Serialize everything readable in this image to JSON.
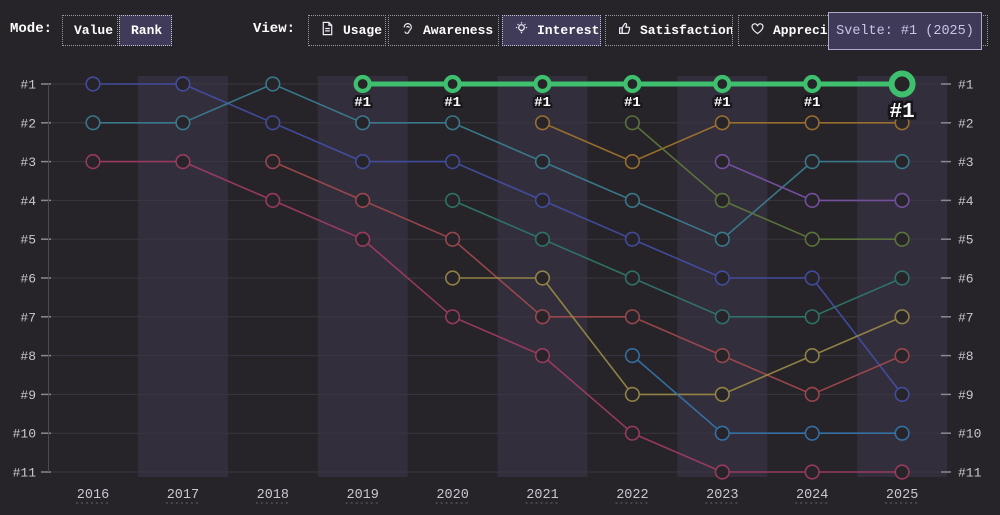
{
  "toolbar": {
    "mode": {
      "label": "Mode:",
      "options": [
        {
          "label": "Value",
          "selected": false
        },
        {
          "label": "Rank",
          "selected": true
        }
      ]
    },
    "view": {
      "label": "View:",
      "options": [
        {
          "label": "Usage",
          "icon": "document-icon",
          "selected": false
        },
        {
          "label": "Awareness",
          "icon": "ear-icon",
          "selected": false
        },
        {
          "label": "Interest",
          "icon": "lightbulb-icon",
          "selected": true
        },
        {
          "label": "Satisfaction",
          "icon": "thumbs-up-icon",
          "selected": false
        },
        {
          "label": "Appreciation",
          "icon": "heart-icon",
          "selected": false
        }
      ]
    }
  },
  "tooltip": {
    "text": "Svelte: #1 (2025)"
  },
  "chart_data": {
    "type": "line",
    "variant": "bump-rank-chart",
    "x_labels": [
      "2016",
      "2017",
      "2018",
      "2019",
      "2020",
      "2021",
      "2022",
      "2023",
      "2024",
      "2025"
    ],
    "y_tick_labels": [
      "#1",
      "#2",
      "#3",
      "#4",
      "#5",
      "#6",
      "#7",
      "#8",
      "#9",
      "#10",
      "#11"
    ],
    "y_axis_sides": [
      "left",
      "right"
    ],
    "grid": true,
    "striped_columns": [
      "2017",
      "2019",
      "2021",
      "2023",
      "2025"
    ],
    "highlight": {
      "series": "Svelte",
      "point_label": "#1",
      "tooltip_text": "Svelte: #1 (2025)",
      "color": "#3ec06f"
    },
    "series": [
      {
        "name": "series-royal-blue",
        "color": "#4450a8",
        "highlighted": false,
        "ranks": [
          1,
          1,
          2,
          3,
          3,
          4,
          5,
          6,
          6,
          9
        ]
      },
      {
        "name": "series-teal",
        "color": "#3a8194",
        "highlighted": false,
        "ranks": [
          2,
          2,
          1,
          2,
          2,
          3,
          4,
          5,
          3,
          3
        ]
      },
      {
        "name": "series-crimson",
        "color": "#a23d62",
        "highlighted": false,
        "ranks": [
          3,
          3,
          4,
          5,
          7,
          8,
          10,
          11,
          11,
          11
        ]
      },
      {
        "name": "series-red",
        "color": "#a34a4e",
        "highlighted": false,
        "ranks": [
          null,
          null,
          3,
          4,
          5,
          7,
          7,
          8,
          9,
          8
        ]
      },
      {
        "name": "series-dark-teal",
        "color": "#2f7a6e",
        "highlighted": false,
        "ranks": [
          null,
          null,
          null,
          null,
          4,
          5,
          6,
          7,
          7,
          6
        ]
      },
      {
        "name": "series-olive",
        "color": "#9b8c47",
        "highlighted": false,
        "ranks": [
          null,
          null,
          null,
          null,
          6,
          6,
          9,
          9,
          8,
          7
        ]
      },
      {
        "name": "series-orange",
        "color": "#a3762e",
        "highlighted": false,
        "ranks": [
          null,
          null,
          null,
          null,
          null,
          2,
          3,
          2,
          2,
          2
        ]
      },
      {
        "name": "series-sage",
        "color": "#5f7a3d",
        "highlighted": false,
        "ranks": [
          null,
          null,
          null,
          null,
          null,
          null,
          2,
          4,
          5,
          5
        ]
      },
      {
        "name": "series-steel-blue",
        "color": "#3677ad",
        "highlighted": false,
        "ranks": [
          null,
          null,
          null,
          null,
          null,
          null,
          8,
          10,
          10,
          10
        ]
      },
      {
        "name": "series-purple",
        "color": "#7b53a8",
        "highlighted": false,
        "ranks": [
          null,
          null,
          null,
          null,
          null,
          null,
          null,
          3,
          4,
          4
        ]
      },
      {
        "name": "Svelte",
        "color": "#3ec06f",
        "highlighted": true,
        "ranks": [
          null,
          null,
          null,
          1,
          1,
          1,
          1,
          1,
          1,
          1
        ]
      }
    ]
  },
  "colors": {
    "background": "#262329",
    "stripe": "#8d81c4",
    "gridline": "#3a3740",
    "axis_text": "#cac7d1",
    "selected_button_bg": "#3f3b58",
    "tooltip_bg": "#3e3a57",
    "tooltip_border": "#aeaacb",
    "highlight_green": "#3ec06f"
  }
}
